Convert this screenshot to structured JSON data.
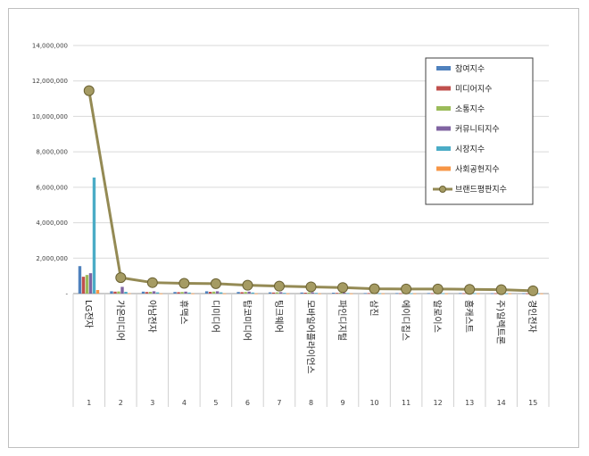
{
  "chart_data": {
    "type": "bar",
    "categories": [
      "LG전자",
      "가온미디어",
      "아남전자",
      "휴맥스",
      "디미디어",
      "탑코미디어",
      "팅크웨어",
      "모바일어플라이언스",
      "파인디지털",
      "삼진",
      "에이디칩스",
      "알로이스",
      "홈캐스트",
      "주)일렉트론",
      "경인전자"
    ],
    "x_numbers": [
      "1",
      "2",
      "3",
      "4",
      "5",
      "6",
      "7",
      "8",
      "9",
      "10",
      "11",
      "12",
      "13",
      "14",
      "15"
    ],
    "ylim": [
      0,
      14000000
    ],
    "yticks": [
      "-",
      "2,000,000",
      "4,000,000",
      "6,000,000",
      "8,000,000",
      "10,000,000",
      "12,000,000",
      "14,000,000"
    ],
    "grid": true,
    "legend_position": "top-right",
    "series": [
      {
        "name": "참여지수",
        "color": "#4f81bd",
        "values": [
          1550000,
          130000,
          110000,
          90000,
          130000,
          90000,
          70000,
          60000,
          50000,
          30000,
          30000,
          30000,
          30000,
          20000,
          20000
        ]
      },
      {
        "name": "미디어지수",
        "color": "#c0504d",
        "values": [
          950000,
          110000,
          90000,
          80000,
          100000,
          80000,
          60000,
          50000,
          40000,
          30000,
          20000,
          20000,
          20000,
          20000,
          10000
        ]
      },
      {
        "name": "소통지수",
        "color": "#9bbb59",
        "values": [
          1050000,
          120000,
          100000,
          90000,
          110000,
          90000,
          70000,
          60000,
          50000,
          30000,
          30000,
          30000,
          30000,
          20000,
          20000
        ]
      },
      {
        "name": "커뮤니티지수",
        "color": "#8064a2",
        "values": [
          1150000,
          380000,
          130000,
          110000,
          130000,
          110000,
          80000,
          70000,
          50000,
          40000,
          30000,
          30000,
          30000,
          20000,
          20000
        ]
      },
      {
        "name": "시장지수",
        "color": "#4bacc6",
        "values": [
          6550000,
          100000,
          70000,
          60000,
          70000,
          60000,
          40000,
          40000,
          30000,
          20000,
          20000,
          20000,
          20000,
          10000,
          10000
        ]
      },
      {
        "name": "사회공헌지수",
        "color": "#f79646",
        "values": [
          200000,
          20000,
          10000,
          10000,
          10000,
          10000,
          10000,
          10000,
          10000,
          10000,
          10000,
          10000,
          10000,
          10000,
          10000
        ]
      }
    ],
    "line_series": {
      "name": "브랜드평판지수",
      "color": "#948a54",
      "values": [
        11450000,
        900000,
        620000,
        580000,
        560000,
        470000,
        420000,
        380000,
        340000,
        270000,
        260000,
        260000,
        240000,
        220000,
        160000
      ]
    }
  }
}
